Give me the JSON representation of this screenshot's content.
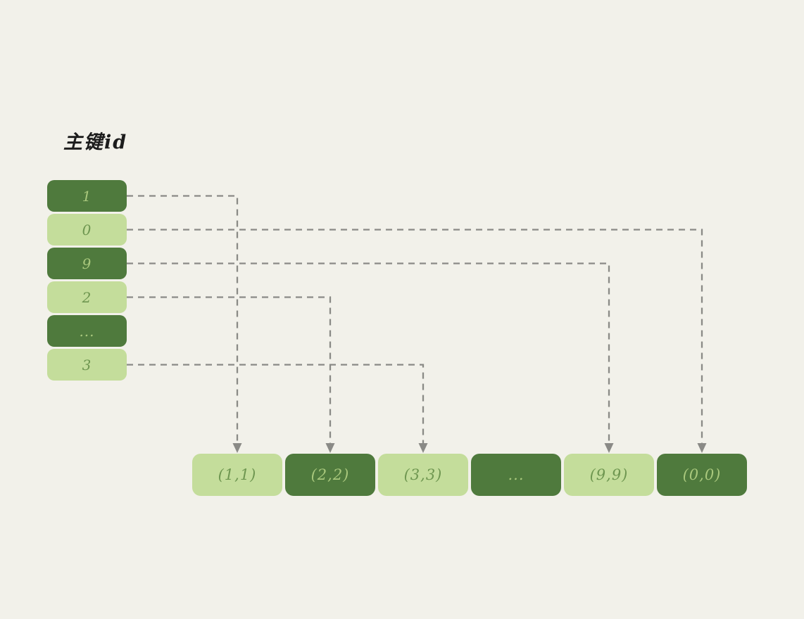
{
  "title": "主键id",
  "colors": {
    "background": "#f2f1ea",
    "box_dark": "#4f7a3d",
    "box_light": "#c4dd9b",
    "text_on_dark": "#a9c87d",
    "text_on_light": "#6e9650",
    "connector": "#8a8a86",
    "title_text": "#1c1c1c"
  },
  "left_column": {
    "name": "primary-key-ids",
    "items": [
      {
        "label": "1",
        "variant": "dark"
      },
      {
        "label": "0",
        "variant": "light"
      },
      {
        "label": "9",
        "variant": "dark"
      },
      {
        "label": "2",
        "variant": "light"
      },
      {
        "label": "...",
        "variant": "dark"
      },
      {
        "label": "3",
        "variant": "light"
      }
    ]
  },
  "bottom_row": {
    "name": "pair-slots",
    "items": [
      {
        "label": "(1,1)",
        "variant": "light"
      },
      {
        "label": "(2,2)",
        "variant": "dark"
      },
      {
        "label": "(3,3)",
        "variant": "light"
      },
      {
        "label": "...",
        "variant": "dark"
      },
      {
        "label": "(9,9)",
        "variant": "light"
      },
      {
        "label": "(0,0)",
        "variant": "dark"
      }
    ]
  },
  "connections": [
    {
      "from": 0,
      "to": 0,
      "label": "1 -> (1,1)"
    },
    {
      "from": 1,
      "to": 5,
      "label": "0 -> (0,0)"
    },
    {
      "from": 2,
      "to": 4,
      "label": "9 -> (9,9)"
    },
    {
      "from": 3,
      "to": 1,
      "label": "2 -> (2,2)"
    },
    {
      "from": 5,
      "to": 2,
      "label": "3 -> (3,3)"
    }
  ]
}
